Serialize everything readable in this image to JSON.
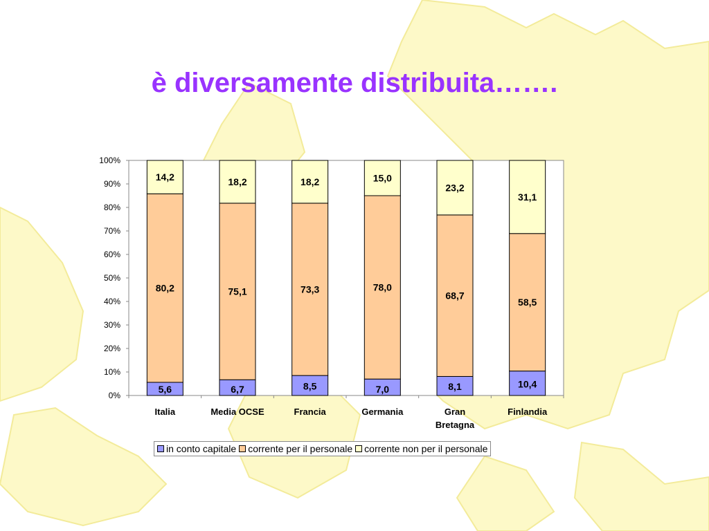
{
  "slide": {
    "title": "è  diversamente distribuita……."
  },
  "colors": {
    "title": "#9933ff",
    "map_fill": "#fdf9c8",
    "map_stroke": "#f3eb9a"
  },
  "chart_data": {
    "type": "bar",
    "stacked": true,
    "percent": true,
    "categories": [
      "Italia",
      "Media OCSE",
      "Francia",
      "Germania",
      "Gran Bretagna",
      "Finlandia"
    ],
    "category_lines": [
      [
        "Italia"
      ],
      [
        "Media OCSE"
      ],
      [
        "Francia"
      ],
      [
        "Germania"
      ],
      [
        "Gran",
        "Bretagna"
      ],
      [
        "Finlandia"
      ]
    ],
    "series": [
      {
        "name": "in conto capitale",
        "color": "#9999ff",
        "values": [
          5.6,
          6.7,
          8.5,
          7.0,
          8.1,
          10.4
        ],
        "labels": [
          "5,6",
          "6,7",
          "8,5",
          "7,0",
          "8,1",
          "10,4"
        ]
      },
      {
        "name": "corrente per il personale",
        "color": "#ffcc99",
        "values": [
          80.2,
          75.1,
          73.3,
          78.0,
          68.7,
          58.5
        ],
        "labels": [
          "80,2",
          "75,1",
          "73,3",
          "78,0",
          "68,7",
          "58,5"
        ]
      },
      {
        "name": "corrente non per il personale",
        "color": "#ffffcc",
        "values": [
          14.2,
          18.2,
          18.2,
          15.0,
          23.2,
          31.1
        ],
        "labels": [
          "14,2",
          "18,2",
          "18,2",
          "15,0",
          "23,2",
          "31,1"
        ]
      }
    ],
    "yticks": [
      "0%",
      "10%",
      "20%",
      "30%",
      "40%",
      "50%",
      "60%",
      "70%",
      "80%",
      "90%",
      "100%"
    ],
    "ylim": [
      0,
      100
    ],
    "legend_position": "bottom",
    "grid": false
  }
}
